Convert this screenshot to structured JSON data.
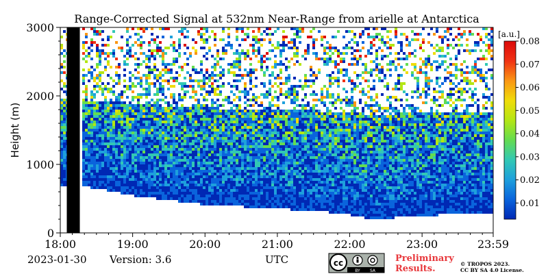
{
  "chart_data": {
    "type": "heatmap",
    "title": "Range-Corrected Signal at 532nm Near-Range from arielle at Antarctica",
    "ylabel": "Height (m)",
    "xlabel": "UTC",
    "x_ticks": [
      "18:00",
      "19:00",
      "20:00",
      "21:00",
      "22:00",
      "23:00",
      "23:59"
    ],
    "x_range_hours": [
      18.0,
      23.983
    ],
    "y_ticks": [
      0,
      1000,
      2000,
      3000
    ],
    "ylim": [
      0,
      3000
    ],
    "colorbar": {
      "unit": "[a.u.]",
      "ticks": [
        0.01,
        0.02,
        0.03,
        0.04,
        0.05,
        0.06,
        0.07,
        0.08
      ],
      "range": [
        0.003,
        0.08
      ],
      "colormap": [
        "#0028b4",
        "#0a64dc",
        "#1ea0dc",
        "#32c8b4",
        "#64dc50",
        "#b4e614",
        "#f0dc0a",
        "#fa9614",
        "#f03214",
        "#dc0a0a"
      ]
    },
    "data_gap_hours": [
      18.09,
      18.27
    ],
    "cloud_base_profile": {
      "time_hours": [
        18.27,
        18.6,
        18.8,
        19.0,
        19.3,
        19.6,
        20.0,
        20.5,
        21.0,
        21.5,
        21.9,
        22.15,
        22.3,
        22.5,
        22.8,
        23.2,
        23.6,
        23.98
      ],
      "height_m": [
        700,
        650,
        600,
        560,
        520,
        480,
        430,
        400,
        370,
        340,
        300,
        250,
        200,
        230,
        260,
        280,
        300,
        320
      ]
    }
  },
  "footer": {
    "date": "2023-01-30",
    "version": "Version: 3.6",
    "utc": "UTC",
    "preliminary_line1": "Preliminary",
    "preliminary_line2": "Results.",
    "copyright_line1": "© TROPOS 2023.",
    "copyright_line2": "CC BY SA 4.0 License.",
    "cc_badge": {
      "cc": "cc",
      "by": "BY",
      "sa": "SA"
    }
  },
  "colors": {
    "preliminary": "#e8383c",
    "background": "#ffffff",
    "gap": "#000000"
  }
}
